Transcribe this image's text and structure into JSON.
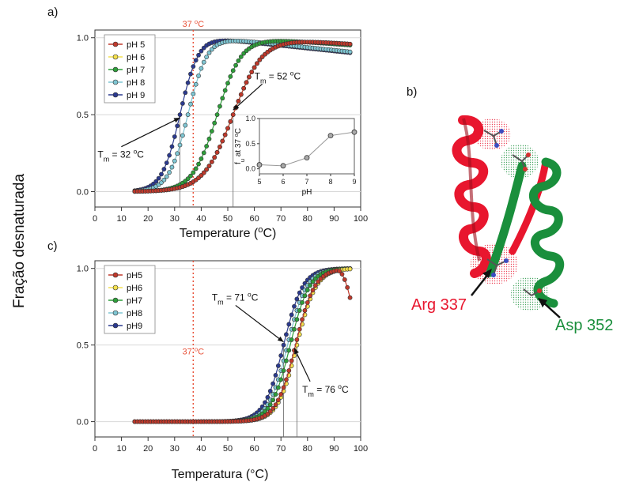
{
  "figure": {
    "panel_a_label": "a)",
    "panel_b_label": "b)",
    "panel_c_label": "c)",
    "shared_ylabel": "Fração desnaturada",
    "structure": {
      "label_arg": "Arg 337",
      "label_asp": "Asp 352",
      "color_arg": "#e8162e",
      "color_asp": "#1a8f3c"
    }
  },
  "chart_data": [
    {
      "id": "panel_a",
      "type": "scatter",
      "xlabel": "Temperature (",
      "xlabel_sup": "o",
      "xlabel_end": "C)",
      "xlim": [
        0,
        100
      ],
      "ylim": [
        -0.1,
        1.05
      ],
      "xticks": [
        0,
        10,
        20,
        30,
        40,
        50,
        60,
        70,
        80,
        90,
        100
      ],
      "yticks": [
        0.0,
        0.5,
        1.0
      ],
      "ytick_labels": [
        "0.0",
        "0.5",
        "1.0"
      ],
      "grid": true,
      "legend_position": "top-left",
      "ref_line": {
        "x": 37,
        "label": "37 ",
        "label_sup": "o",
        "label_end": "C",
        "color": "#e8533a"
      },
      "tm_lines": [
        32,
        52
      ],
      "annotations": [
        {
          "text": "T",
          "sub": "m",
          "rest": " = 32 ",
          "sup": "o",
          "end": "C",
          "text_x": 1,
          "text_y": 0.22,
          "arrow_x": 32,
          "arrow_y": 0.48
        },
        {
          "text": "T",
          "sub": "m",
          "rest": " = 52 ",
          "sup": "o",
          "end": "C",
          "text_x": 60,
          "text_y": 0.73,
          "arrow_x": 52,
          "arrow_y": 0.53
        }
      ],
      "series": [
        {
          "name": "pH 5",
          "color": "#c0392b",
          "tm": 52,
          "k": 5.6,
          "x_end": 96,
          "post_slope": -0.0012
        },
        {
          "name": "pH 6",
          "color": "#f4e04d",
          "tm": 52,
          "k": 5.6,
          "x_end": 96,
          "post_slope": -0.0012
        },
        {
          "name": "pH 7",
          "color": "#2e9e3a",
          "tm": 46,
          "k": 4.6,
          "x_end": 96,
          "post_slope": -0.0012
        },
        {
          "name": "pH 8",
          "color": "#7fc6d3",
          "tm": 35,
          "k": 3.6,
          "x_end": 96,
          "post_slope": -0.0018
        },
        {
          "name": "pH 9",
          "color": "#2b3a8f",
          "tm": 32,
          "k": 3.4,
          "x_end": 96,
          "post_slope": -0.0018
        }
      ],
      "inset": {
        "type": "line",
        "xlabel": "pH",
        "ylabel_main": "f",
        "ylabel_sub": "u",
        "ylabel_rest": " at 37 ",
        "ylabel_sup": "o",
        "ylabel_end": "C",
        "xlim": [
          5,
          9
        ],
        "ylim": [
          -0.1,
          1.0
        ],
        "xticks": [
          5,
          6,
          7,
          8,
          9
        ],
        "yticks": [
          0.0,
          0.5,
          1.0
        ],
        "ytick_labels": [
          "0.0",
          "0.5",
          "1.0"
        ],
        "x": [
          5,
          6,
          7,
          8,
          9
        ],
        "y": [
          0.08,
          0.06,
          0.22,
          0.66,
          0.73
        ]
      }
    },
    {
      "id": "panel_c",
      "type": "scatter",
      "xlabel": "Temperatura (°C)",
      "xlim": [
        0,
        100
      ],
      "ylim": [
        -0.1,
        1.05
      ],
      "xticks": [
        0,
        10,
        20,
        30,
        40,
        50,
        60,
        70,
        80,
        90,
        100
      ],
      "yticks": [
        0.0,
        0.5,
        1.0
      ],
      "ytick_labels": [
        "0.0",
        "0.5",
        "1.0"
      ],
      "grid": true,
      "legend_position": "top-left",
      "ref_line": {
        "x": 37,
        "label": "37 ",
        "label_sup": "o",
        "label_end": "C",
        "color": "#e8533a"
      },
      "tm_lines": [
        71,
        76
      ],
      "annotations": [
        {
          "text": "T",
          "sub": "m",
          "rest": " = 71 ",
          "sup": "o",
          "end": "C",
          "text_x": 44,
          "text_y": 0.79,
          "arrow_x": 71,
          "arrow_y": 0.52
        },
        {
          "text": "T",
          "sub": "m",
          "rest": " = 76 ",
          "sup": "o",
          "end": "C",
          "text_x": 78,
          "text_y": 0.19,
          "arrow_x": 75,
          "arrow_y": 0.48
        }
      ],
      "series": [
        {
          "name": "pH5",
          "color": "#c0392b",
          "tm": 75.5,
          "k": 3.6,
          "x_end": 96,
          "droop": true
        },
        {
          "name": "pH6",
          "color": "#f4e04d",
          "tm": 76,
          "k": 3.6,
          "x_end": 96
        },
        {
          "name": "pH7",
          "color": "#2e9e3a",
          "tm": 73.5,
          "k": 3.6,
          "x_end": 96
        },
        {
          "name": "pH8",
          "color": "#7fc6d3",
          "tm": 72.5,
          "k": 3.6,
          "x_end": 96
        },
        {
          "name": "pH9",
          "color": "#2b3a8f",
          "tm": 71,
          "k": 3.6,
          "x_end": 96
        }
      ]
    }
  ]
}
